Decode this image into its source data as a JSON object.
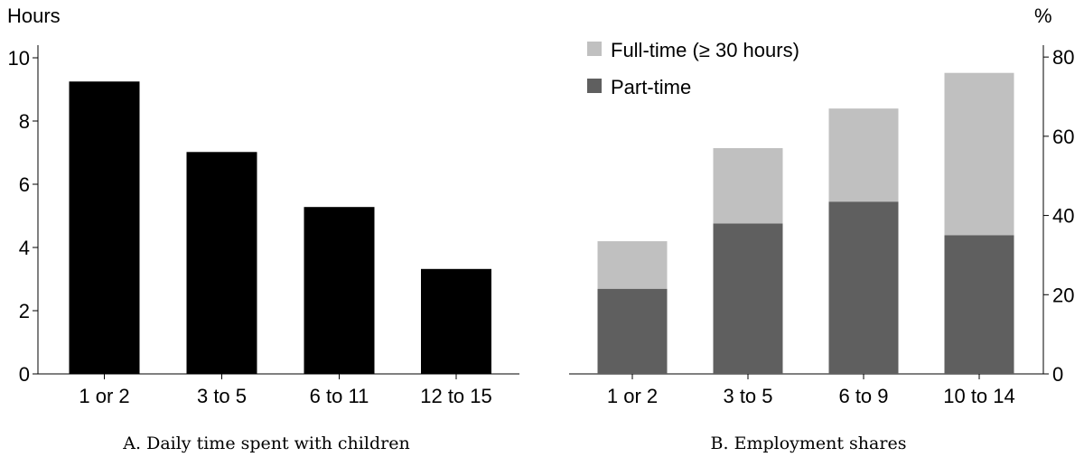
{
  "chart_data": [
    {
      "type": "bar",
      "caption": "A. Daily time spent with children",
      "ylabel": "Hours",
      "categories": [
        "1 or 2",
        "3 to 5",
        "6 to 11",
        "12 to 15"
      ],
      "values": [
        9.25,
        7.02,
        5.28,
        3.32
      ],
      "ylim": [
        0,
        10.4
      ],
      "yticks": [
        "0",
        "2",
        "4",
        "6",
        "8",
        "10"
      ],
      "color": "#000000",
      "grid": false
    },
    {
      "type": "bar",
      "stacked": true,
      "caption": "B. Employment shares",
      "ylabel": "%",
      "categories": [
        "1 or 2",
        "3 to 5",
        "6 to 9",
        "10 to 14"
      ],
      "series": [
        {
          "name": "Part-time",
          "values": [
            21.5,
            38.0,
            43.5,
            35.0
          ],
          "color": "#5f5f5f"
        },
        {
          "name": "Full-time (≥ 30 hours)",
          "values": [
            12.0,
            19.0,
            23.5,
            41.0
          ],
          "color": "#c0c0c0"
        }
      ],
      "ylim": [
        0,
        83
      ],
      "yticks": [
        "0",
        "20",
        "40",
        "60",
        "80"
      ],
      "legend": [
        "Full-time (≥ 30 hours)",
        "Part-time"
      ],
      "legend_position": "top-left",
      "grid": false
    }
  ]
}
